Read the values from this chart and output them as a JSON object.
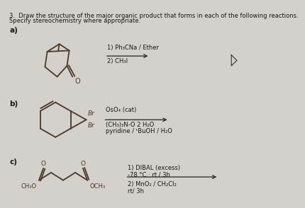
{
  "title_line1": "3.  Draw the structure of the major organic product that forms in each of the following reactions.",
  "title_line2": "Specify stereochemistry where appropriate.",
  "label_a": "a)",
  "label_b": "b)",
  "label_c": "c)",
  "reagents_a1": "1) Ph₃CNa / Ether",
  "reagents_a2": "2) CH₃I",
  "reagents_b1": "OsO₄ (cat)",
  "reagents_b2": "(CH₃)₃N-O 2 H₂O",
  "reagents_b3": "pyridine / ᵗBuOH / H₂O",
  "reagents_c1": "1) DIBAL (excess)",
  "reagents_c2": "-78 °C · rt / 3h",
  "reagents_c3": "2) MnO₂ / CH₂Cl₂",
  "reagents_c4": "rt/ 3h",
  "bg_color": "#d4d0cb",
  "text_color": "#1a1a1a",
  "struct_color": "#4a3828",
  "arrow_color": "#333333"
}
